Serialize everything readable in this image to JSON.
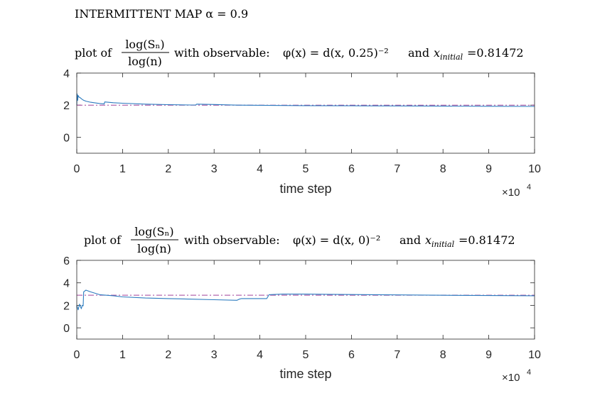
{
  "figure": {
    "suptitle": "INTERMITTENT MAP α = 0.9"
  },
  "chart_data": [
    {
      "type": "line",
      "title": {
        "prefix": "plot of",
        "fraction_num": "log(Sₙ)",
        "fraction_den": "log(n)",
        "observable_text": "with observable:",
        "observable_formula": "φ(x) = d(x, 0.25)⁻²",
        "and_text": "and",
        "xinit_symbol": "x",
        "xinit_sub": "initial",
        "xinit_value": "=0.81472"
      },
      "xlabel": "time step",
      "x_exponent_base": "×10",
      "x_exponent_power": "4",
      "xlim": [
        0,
        100000
      ],
      "ylim": [
        -1,
        4
      ],
      "xticks": [
        0,
        10000,
        20000,
        30000,
        40000,
        50000,
        60000,
        70000,
        80000,
        90000,
        100000
      ],
      "xtick_labels": [
        "0",
        "1",
        "2",
        "3",
        "4",
        "5",
        "6",
        "7",
        "8",
        "9",
        "10"
      ],
      "yticks": [
        0,
        2,
        4
      ],
      "ytick_labels": [
        "0",
        "2",
        "4"
      ],
      "reference_line": {
        "y": 2,
        "style": "dash-dot",
        "color": "#a2429a"
      },
      "series": [
        {
          "color": "#2b7bbf",
          "x": [
            0,
            100,
            200,
            300,
            500,
            800,
            1000,
            1500,
            2000,
            3000,
            5000,
            6000,
            6100,
            8000,
            10000,
            15000,
            20000,
            25000,
            26000,
            26200,
            30000,
            35000,
            40000,
            45000,
            50000,
            60000,
            70000,
            80000,
            90000,
            100000
          ],
          "y": [
            2.0,
            2.7,
            2.3,
            2.6,
            2.5,
            2.45,
            2.4,
            2.3,
            2.25,
            2.18,
            2.1,
            2.07,
            2.2,
            2.15,
            2.12,
            2.06,
            2.03,
            2.01,
            2.01,
            2.06,
            2.04,
            2.0,
            1.99,
            1.98,
            1.97,
            1.96,
            1.95,
            1.94,
            1.93,
            1.92
          ]
        }
      ]
    },
    {
      "type": "line",
      "title": {
        "prefix": "plot of",
        "fraction_num": "log(Sₙ)",
        "fraction_den": "log(n)",
        "observable_text": "with observable:",
        "observable_formula": "φ(x) = d(x, 0)⁻²",
        "and_text": "and",
        "xinit_symbol": "x",
        "xinit_sub": "initial",
        "xinit_value": "=0.81472"
      },
      "xlabel": "time step",
      "x_exponent_base": "×10",
      "x_exponent_power": "4",
      "xlim": [
        0,
        100000
      ],
      "ylim": [
        -1,
        6
      ],
      "xticks": [
        0,
        10000,
        20000,
        30000,
        40000,
        50000,
        60000,
        70000,
        80000,
        90000,
        100000
      ],
      "xtick_labels": [
        "0",
        "1",
        "2",
        "3",
        "4",
        "5",
        "6",
        "7",
        "8",
        "9",
        "10"
      ],
      "yticks": [
        0,
        2,
        4,
        6
      ],
      "ytick_labels": [
        "0",
        "2",
        "4",
        "6"
      ],
      "reference_line": {
        "y": 2.9,
        "style": "dash-dot",
        "color": "#a2429a"
      },
      "series": [
        {
          "color": "#2b7bbf",
          "x": [
            0,
            300,
            600,
            1000,
            1200,
            1400,
            1500,
            2000,
            3000,
            5000,
            8000,
            10000,
            15000,
            20000,
            25000,
            30000,
            35000,
            35500,
            36000,
            40000,
            41500,
            42000,
            45000,
            50000,
            55000,
            60000,
            70000,
            80000,
            90000,
            100000
          ],
          "y": [
            2.0,
            1.6,
            2.1,
            1.7,
            2.0,
            1.95,
            3.2,
            3.35,
            3.2,
            2.95,
            2.85,
            2.75,
            2.65,
            2.6,
            2.55,
            2.5,
            2.45,
            2.55,
            2.6,
            2.6,
            2.6,
            2.95,
            3.0,
            3.0,
            2.98,
            2.96,
            2.93,
            2.9,
            2.87,
            2.85
          ]
        }
      ]
    }
  ]
}
